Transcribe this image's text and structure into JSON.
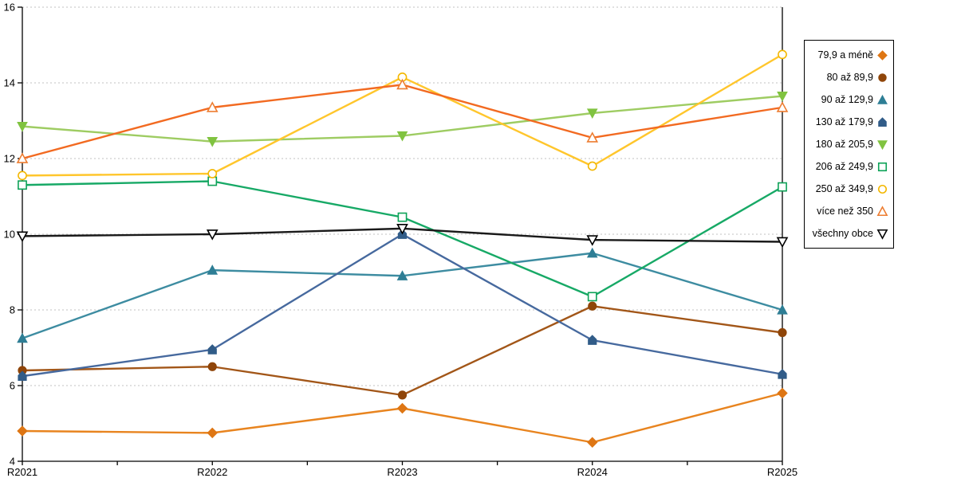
{
  "chart_data": {
    "type": "line",
    "title": "",
    "xlabel": "",
    "ylabel": "",
    "categories": [
      "R2021",
      "R2022",
      "R2023",
      "R2024",
      "R2025"
    ],
    "ylim": [
      4,
      16
    ],
    "yticks": [
      4,
      6,
      8,
      10,
      12,
      14,
      16
    ],
    "grid": "horizontal dotted",
    "legend_position": "right",
    "gridline_color": "#C0C0C0",
    "axis_color": "#000000",
    "series": [
      {
        "name": "79,9 a méně",
        "marker": "diamond",
        "fill": "filled",
        "color": "#E8841F",
        "marker_color": "#DE7614",
        "values": [
          4.8,
          4.75,
          5.4,
          4.5,
          5.8
        ]
      },
      {
        "name": "80 až 89,9",
        "marker": "circle",
        "fill": "filled",
        "color": "#A25618",
        "marker_color": "#8F4509",
        "values": [
          6.4,
          6.5,
          5.75,
          8.1,
          7.4
        ]
      },
      {
        "name": "90 až 129,9",
        "marker": "triangle-up",
        "fill": "filled",
        "color": "#3D8CA1",
        "marker_color": "#2E7E95",
        "values": [
          7.25,
          9.05,
          8.9,
          9.5,
          8.0
        ]
      },
      {
        "name": "130 až 179,9",
        "marker": "pentagon",
        "fill": "filled",
        "color": "#46699E",
        "marker_color": "#315C88",
        "values": [
          6.25,
          6.95,
          10.0,
          7.2,
          6.3
        ]
      },
      {
        "name": "180 až 205,9",
        "marker": "triangle-down",
        "fill": "filled",
        "color": "#9ECC62",
        "marker_color": "#80C340",
        "values": [
          12.85,
          12.45,
          12.6,
          13.2,
          13.65
        ]
      },
      {
        "name": "206 až 249,9",
        "marker": "square",
        "fill": "open",
        "color": "#17A966",
        "marker_color": "#0DA257",
        "values": [
          11.3,
          11.4,
          10.45,
          8.35,
          11.25
        ]
      },
      {
        "name": "250 až 349,9",
        "marker": "circle",
        "fill": "open",
        "color": "#FFC62C",
        "marker_color": "#F3B700",
        "values": [
          11.55,
          11.6,
          14.15,
          11.8,
          14.75
        ]
      },
      {
        "name": "více než 350",
        "marker": "triangle-up",
        "fill": "open",
        "color": "#F26A21",
        "marker_color": "#ED7D31",
        "values": [
          12.0,
          13.35,
          13.95,
          12.55,
          13.35
        ]
      },
      {
        "name": "všechny obce",
        "marker": "triangle-down",
        "fill": "open",
        "color": "#1A1A1A",
        "marker_color": "#000000",
        "values": [
          9.95,
          10.0,
          10.15,
          9.85,
          9.8
        ]
      }
    ]
  }
}
